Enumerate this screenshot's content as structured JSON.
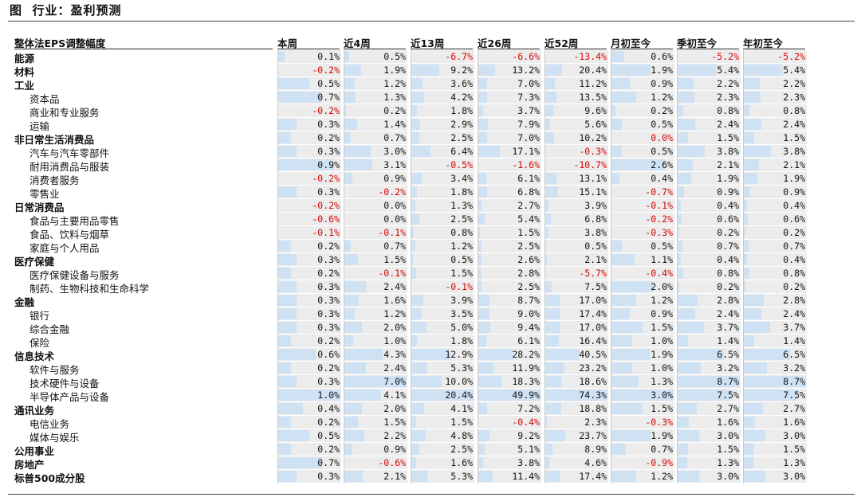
{
  "page": {
    "title": "图  行业：盈利预测"
  },
  "chart_data": {
    "type": "table",
    "title": "",
    "header": {
      "label": "整体法EPS调整幅度",
      "columns": [
        "本周",
        "近4周",
        "近13周",
        "近26周",
        "近52周",
        "月初至今",
        "季初至今",
        "年初至今"
      ]
    },
    "colors": {
      "bar": "#cfe2f3",
      "negative_text": "#d90000",
      "cell_bg": "#ececec"
    },
    "rows": [
      {
        "name": "能源",
        "level": 0,
        "values": [
          "0.1%",
          "0.5%",
          "-6.7%",
          "-6.6%",
          "-13.4%",
          "0.6%",
          "-5.2%",
          "-5.2%"
        ]
      },
      {
        "name": "材料",
        "level": 0,
        "values": [
          "-0.2%",
          "1.9%",
          "9.2%",
          "13.2%",
          "20.4%",
          "1.9%",
          "5.4%",
          "5.4%"
        ]
      },
      {
        "name": "工业",
        "level": 0,
        "values": [
          "0.5%",
          "1.2%",
          "3.6%",
          "7.0%",
          "11.2%",
          "0.9%",
          "2.2%",
          "2.2%"
        ]
      },
      {
        "name": "资本品",
        "level": 1,
        "values": [
          "0.7%",
          "1.3%",
          "4.2%",
          "7.3%",
          "13.5%",
          "1.2%",
          "2.3%",
          "2.3%"
        ]
      },
      {
        "name": "商业和专业服务",
        "level": 1,
        "values": [
          "-0.2%",
          "0.2%",
          "1.8%",
          "3.7%",
          "9.6%",
          "0.2%",
          "0.8%",
          "0.8%"
        ]
      },
      {
        "name": "运输",
        "level": 1,
        "values": [
          "0.3%",
          "1.4%",
          "2.9%",
          "7.9%",
          "5.6%",
          "0.5%",
          "2.4%",
          "2.4%"
        ]
      },
      {
        "name": "非日常生活消费品",
        "level": 0,
        "values": [
          "0.2%",
          "0.7%",
          "2.5%",
          "7.0%",
          "10.2%",
          "0.0%",
          "1.5%",
          "1.5%"
        ]
      },
      {
        "name": "汽车与汽车零部件",
        "level": 1,
        "values": [
          "0.3%",
          "3.0%",
          "6.4%",
          "17.1%",
          "-0.3%",
          "0.5%",
          "3.8%",
          "3.8%"
        ]
      },
      {
        "name": "耐用消费品与服装",
        "level": 1,
        "values": [
          "0.9%",
          "3.1%",
          "-0.5%",
          "-1.6%",
          "-10.7%",
          "2.6%",
          "2.1%",
          "2.1%"
        ]
      },
      {
        "name": "消费者服务",
        "level": 1,
        "values": [
          "-0.2%",
          "0.9%",
          "3.4%",
          "6.1%",
          "13.1%",
          "0.4%",
          "1.9%",
          "1.9%"
        ]
      },
      {
        "name": "零售业",
        "level": 1,
        "values": [
          "0.3%",
          "-0.2%",
          "1.8%",
          "6.8%",
          "15.1%",
          "-0.7%",
          "0.9%",
          "0.9%"
        ]
      },
      {
        "name": "日常消费品",
        "level": 0,
        "values": [
          "-0.2%",
          "0.0%",
          "1.3%",
          "2.7%",
          "3.9%",
          "-0.1%",
          "0.4%",
          "0.4%"
        ]
      },
      {
        "name": "食品与主要用品零售",
        "level": 1,
        "values": [
          "-0.6%",
          "0.0%",
          "2.5%",
          "5.4%",
          "6.8%",
          "-0.2%",
          "0.6%",
          "0.6%"
        ]
      },
      {
        "name": "食品、饮料与烟草",
        "level": 1,
        "values": [
          "-0.1%",
          "-0.1%",
          "0.8%",
          "1.5%",
          "3.8%",
          "-0.3%",
          "0.2%",
          "0.2%"
        ]
      },
      {
        "name": "家庭与个人用品",
        "level": 1,
        "values": [
          "0.2%",
          "0.7%",
          "1.2%",
          "2.5%",
          "0.5%",
          "0.5%",
          "0.7%",
          "0.7%"
        ]
      },
      {
        "name": "医疗保健",
        "level": 0,
        "values": [
          "0.3%",
          "1.5%",
          "0.5%",
          "2.6%",
          "2.1%",
          "1.1%",
          "0.4%",
          "0.4%"
        ]
      },
      {
        "name": "医疗保健设备与服务",
        "level": 1,
        "values": [
          "0.2%",
          "-0.1%",
          "1.5%",
          "2.8%",
          "-5.7%",
          "-0.4%",
          "0.8%",
          "0.8%"
        ]
      },
      {
        "name": "制药、生物科技和生命科学",
        "level": 1,
        "values": [
          "0.3%",
          "2.4%",
          "-0.1%",
          "2.5%",
          "7.5%",
          "2.0%",
          "0.2%",
          "0.2%"
        ]
      },
      {
        "name": "金融",
        "level": 0,
        "values": [
          "0.3%",
          "1.6%",
          "3.9%",
          "8.7%",
          "17.0%",
          "1.2%",
          "2.8%",
          "2.8%"
        ]
      },
      {
        "name": "银行",
        "level": 1,
        "values": [
          "0.3%",
          "1.2%",
          "3.5%",
          "9.0%",
          "17.4%",
          "0.9%",
          "2.4%",
          "2.4%"
        ]
      },
      {
        "name": "综合金融",
        "level": 1,
        "values": [
          "0.3%",
          "2.0%",
          "5.0%",
          "9.4%",
          "17.0%",
          "1.5%",
          "3.7%",
          "3.7%"
        ]
      },
      {
        "name": "保险",
        "level": 1,
        "values": [
          "0.2%",
          "1.0%",
          "1.8%",
          "6.1%",
          "16.4%",
          "1.0%",
          "1.4%",
          "1.4%"
        ]
      },
      {
        "name": "信息技术",
        "level": 0,
        "values": [
          "0.6%",
          "4.3%",
          "12.9%",
          "28.2%",
          "40.5%",
          "1.9%",
          "6.5%",
          "6.5%"
        ]
      },
      {
        "name": "软件与服务",
        "level": 1,
        "values": [
          "0.2%",
          "2.4%",
          "5.3%",
          "11.9%",
          "23.2%",
          "1.0%",
          "3.2%",
          "3.2%"
        ]
      },
      {
        "name": "技术硬件与设备",
        "level": 1,
        "values": [
          "0.3%",
          "7.0%",
          "10.0%",
          "18.3%",
          "18.6%",
          "1.3%",
          "8.7%",
          "8.7%"
        ]
      },
      {
        "name": "半导体产品与设备",
        "level": 1,
        "values": [
          "1.0%",
          "4.1%",
          "20.4%",
          "49.9%",
          "74.3%",
          "3.0%",
          "7.5%",
          "7.5%"
        ]
      },
      {
        "name": "通讯业务",
        "level": 0,
        "values": [
          "0.4%",
          "2.0%",
          "4.1%",
          "7.2%",
          "18.8%",
          "1.5%",
          "2.7%",
          "2.7%"
        ]
      },
      {
        "name": "电信业务",
        "level": 1,
        "values": [
          "0.2%",
          "1.5%",
          "1.5%",
          "-0.4%",
          "2.3%",
          "-0.3%",
          "1.6%",
          "1.6%"
        ]
      },
      {
        "name": "媒体与娱乐",
        "level": 1,
        "values": [
          "0.5%",
          "2.2%",
          "4.8%",
          "9.2%",
          "23.7%",
          "1.9%",
          "3.0%",
          "3.0%"
        ]
      },
      {
        "name": "公用事业",
        "level": 0,
        "values": [
          "0.2%",
          "0.9%",
          "2.5%",
          "5.1%",
          "8.9%",
          "0.7%",
          "1.5%",
          "1.5%"
        ]
      },
      {
        "name": "房地产",
        "level": 0,
        "values": [
          "0.7%",
          "-0.6%",
          "1.6%",
          "3.8%",
          "4.6%",
          "-0.9%",
          "1.3%",
          "1.3%"
        ]
      },
      {
        "name": "标普500成分股",
        "level": 0,
        "values": [
          "0.3%",
          "2.1%",
          "5.3%",
          "11.4%",
          "17.4%",
          "1.2%",
          "3.0%",
          "3.0%"
        ]
      }
    ]
  }
}
